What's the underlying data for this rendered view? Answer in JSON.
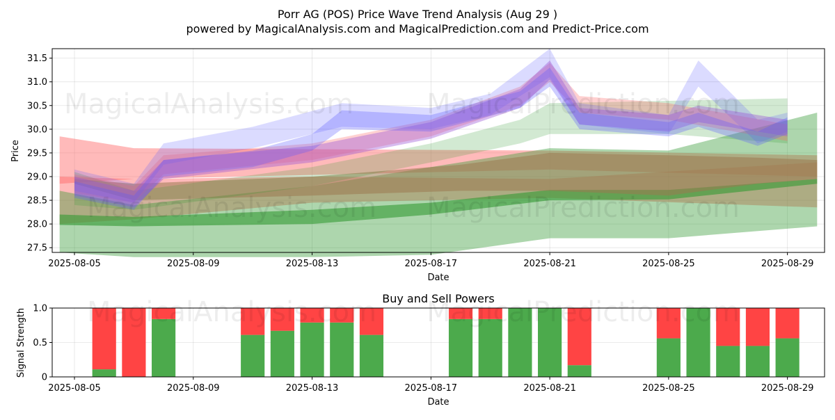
{
  "title_line1": "Porr AG (POS) Price Wave Trend Analysis (Aug 29 )",
  "title_line2": "powered by MagicalAnalysis.com and MagicalPrediction.com and Predict-Price.com",
  "watermark_text_1": "MagicalAnalysis.com",
  "watermark_text_2": "MagicalPrediction.com",
  "colors": {
    "red_band": "#ff6666",
    "green_band": "#339933",
    "blue_band": "#5a5aff",
    "purple_band": "#9a55d8",
    "brown_band": "#9a7a50",
    "buy_bar": "#4caa4c",
    "sell_bar": "#ff4444",
    "grid": "#b0b0b0"
  },
  "chart_data": [
    {
      "type": "area",
      "name": "price-wave-panel",
      "xlabel": "Date",
      "ylabel": "Price",
      "ylim": [
        27.4,
        31.7
      ],
      "y_ticks": [
        27.5,
        28.0,
        28.5,
        29.0,
        29.5,
        30.0,
        30.5,
        31.0,
        31.5
      ],
      "y_tick_labels": [
        "27.5",
        "28.0",
        "28.5",
        "29.0",
        "29.5",
        "30.0",
        "30.5",
        "31.0",
        "31.5"
      ],
      "x_ticks": [
        "2025-08-05",
        "2025-08-09",
        "2025-08-13",
        "2025-08-17",
        "2025-08-21",
        "2025-08-25",
        "2025-08-29"
      ],
      "x_range": [
        "2025-08-04T06:00",
        "2025-08-30T06:00"
      ],
      "grid": true,
      "bands": [
        {
          "color": "red",
          "opacity": 0.45,
          "x": [
            "2025-08-04T12:00",
            "2025-08-07",
            "2025-08-21",
            "2025-08-30"
          ],
          "upper": [
            29.85,
            29.6,
            29.55,
            29.45
          ],
          "lower": [
            28.85,
            28.95,
            29.15,
            29.0
          ]
        },
        {
          "color": "red",
          "opacity": 0.45,
          "x": [
            "2025-08-04T12:00",
            "2025-08-07",
            "2025-08-13",
            "2025-08-21",
            "2025-08-30"
          ],
          "upper": [
            29.0,
            28.95,
            29.0,
            28.95,
            29.3
          ],
          "lower": [
            28.0,
            28.1,
            28.45,
            28.55,
            28.35
          ]
        },
        {
          "color": "green",
          "opacity": 0.4,
          "x": [
            "2025-08-04T12:00",
            "2025-08-07",
            "2025-08-13",
            "2025-08-17",
            "2025-08-21",
            "2025-08-25",
            "2025-08-30"
          ],
          "upper": [
            28.7,
            28.4,
            28.8,
            29.2,
            29.6,
            29.55,
            30.35
          ],
          "lower": [
            27.4,
            27.3,
            27.3,
            27.35,
            27.7,
            27.7,
            27.95
          ]
        },
        {
          "color": "green",
          "opacity": 0.6,
          "x": [
            "2025-08-04T12:00",
            "2025-08-07",
            "2025-08-13",
            "2025-08-17",
            "2025-08-21",
            "2025-08-25",
            "2025-08-30"
          ],
          "upper": [
            28.2,
            28.15,
            28.3,
            28.45,
            28.72,
            28.72,
            28.95
          ],
          "lower": [
            27.98,
            27.95,
            28.0,
            28.2,
            28.5,
            28.52,
            28.85
          ]
        },
        {
          "color": "brown",
          "opacity": 0.55,
          "x": [
            "2025-08-05",
            "2025-08-07",
            "2025-08-13",
            "2025-08-18",
            "2025-08-21",
            "2025-08-25",
            "2025-08-28",
            "2025-08-30"
          ],
          "upper": [
            28.95,
            28.85,
            29.0,
            29.25,
            29.5,
            29.45,
            29.4,
            29.35
          ],
          "lower": [
            28.85,
            28.5,
            28.6,
            28.7,
            28.7,
            28.6,
            28.85,
            28.95
          ]
        },
        {
          "color": "green",
          "opacity": 0.22,
          "x": [
            "2025-08-05",
            "2025-08-07",
            "2025-08-13",
            "2025-08-17",
            "2025-08-20",
            "2025-08-21",
            "2025-08-25",
            "2025-08-29"
          ],
          "upper": [
            29.1,
            28.7,
            29.2,
            29.7,
            30.2,
            30.55,
            30.6,
            30.65
          ],
          "lower": [
            28.4,
            28.3,
            28.8,
            29.3,
            29.7,
            29.9,
            29.9,
            29.7
          ]
        },
        {
          "color": "red",
          "opacity": 0.3,
          "x": [
            "2025-08-05",
            "2025-08-07",
            "2025-08-08",
            "2025-08-13",
            "2025-08-17",
            "2025-08-20",
            "2025-08-21",
            "2025-08-22",
            "2025-08-25",
            "2025-08-29"
          ],
          "upper": [
            29.05,
            28.8,
            29.45,
            29.7,
            30.2,
            30.9,
            31.4,
            30.7,
            30.55,
            30.1
          ],
          "lower": [
            28.65,
            28.45,
            29.05,
            29.35,
            29.85,
            30.5,
            31.0,
            30.35,
            30.2,
            29.75
          ]
        },
        {
          "color": "blue",
          "opacity": 0.22,
          "x": [
            "2025-08-05",
            "2025-08-07",
            "2025-08-08",
            "2025-08-11",
            "2025-08-14",
            "2025-08-17",
            "2025-08-19",
            "2025-08-21",
            "2025-08-22",
            "2025-08-25",
            "2025-08-26",
            "2025-08-28",
            "2025-08-29"
          ],
          "upper": [
            29.15,
            28.85,
            29.7,
            30.05,
            30.55,
            30.45,
            30.75,
            31.7,
            30.55,
            30.3,
            31.45,
            30.2,
            30.35
          ],
          "lower": [
            28.7,
            28.45,
            29.25,
            29.6,
            30.05,
            30.0,
            30.3,
            31.1,
            30.1,
            29.9,
            30.9,
            29.7,
            29.95
          ]
        },
        {
          "color": "purple",
          "opacity": 0.4,
          "x": [
            "2025-08-05",
            "2025-08-07",
            "2025-08-08",
            "2025-08-13",
            "2025-08-17",
            "2025-08-20",
            "2025-08-21",
            "2025-08-22",
            "2025-08-25",
            "2025-08-26",
            "2025-08-29"
          ],
          "upper": [
            29.0,
            28.7,
            29.35,
            29.65,
            30.15,
            30.85,
            31.45,
            30.45,
            30.3,
            30.5,
            30.2
          ],
          "lower": [
            28.6,
            28.35,
            28.95,
            29.3,
            29.8,
            30.45,
            31.05,
            30.1,
            29.95,
            30.15,
            29.85
          ]
        },
        {
          "color": "blue",
          "opacity": 0.3,
          "x": [
            "2025-08-05",
            "2025-08-07",
            "2025-08-08",
            "2025-08-11",
            "2025-08-13",
            "2025-08-14",
            "2025-08-17",
            "2025-08-20",
            "2025-08-21",
            "2025-08-22",
            "2025-08-25",
            "2025-08-26",
            "2025-08-28",
            "2025-08-29"
          ],
          "upper": [
            28.9,
            28.6,
            29.35,
            29.55,
            29.9,
            30.4,
            30.3,
            30.8,
            31.3,
            30.35,
            30.15,
            30.35,
            29.95,
            30.25
          ],
          "lower": [
            28.55,
            28.3,
            29.0,
            29.2,
            29.55,
            30.0,
            29.95,
            30.45,
            30.9,
            30.0,
            29.85,
            30.05,
            29.65,
            29.9
          ]
        }
      ]
    },
    {
      "type": "bar",
      "name": "buy-sell-power-panel",
      "title": "Buy and Sell Powers",
      "xlabel": "Date",
      "ylabel": "Signal Strength",
      "ylim": [
        0,
        1
      ],
      "y_ticks": [
        0.0,
        0.5,
        1.0
      ],
      "y_tick_labels": [
        "0",
        "0.5",
        "1.0"
      ],
      "x_ticks": [
        "2025-08-05",
        "2025-08-09",
        "2025-08-13",
        "2025-08-17",
        "2025-08-21",
        "2025-08-25",
        "2025-08-29"
      ],
      "x_range": [
        "2025-08-04T06:00",
        "2025-08-30T06:00"
      ],
      "grid": true,
      "stacked": true,
      "categories": [
        "2025-08-06",
        "2025-08-07",
        "2025-08-08",
        "2025-08-11",
        "2025-08-12",
        "2025-08-13",
        "2025-08-14",
        "2025-08-15",
        "2025-08-18",
        "2025-08-19",
        "2025-08-20",
        "2025-08-21",
        "2025-08-22",
        "2025-08-25",
        "2025-08-26",
        "2025-08-27",
        "2025-08-28",
        "2025-08-29"
      ],
      "series": [
        {
          "name": "Buy",
          "values": [
            0.11,
            0.0,
            0.84,
            0.61,
            0.67,
            0.79,
            0.79,
            0.61,
            0.84,
            0.84,
            1.0,
            1.0,
            0.17,
            0.56,
            1.0,
            0.45,
            0.45,
            0.56
          ]
        },
        {
          "name": "Sell",
          "values": [
            0.89,
            1.0,
            0.16,
            0.39,
            0.33,
            0.21,
            0.21,
            0.39,
            0.16,
            0.16,
            0.0,
            0.0,
            0.83,
            0.44,
            0.0,
            0.55,
            0.55,
            0.44
          ]
        }
      ]
    }
  ]
}
